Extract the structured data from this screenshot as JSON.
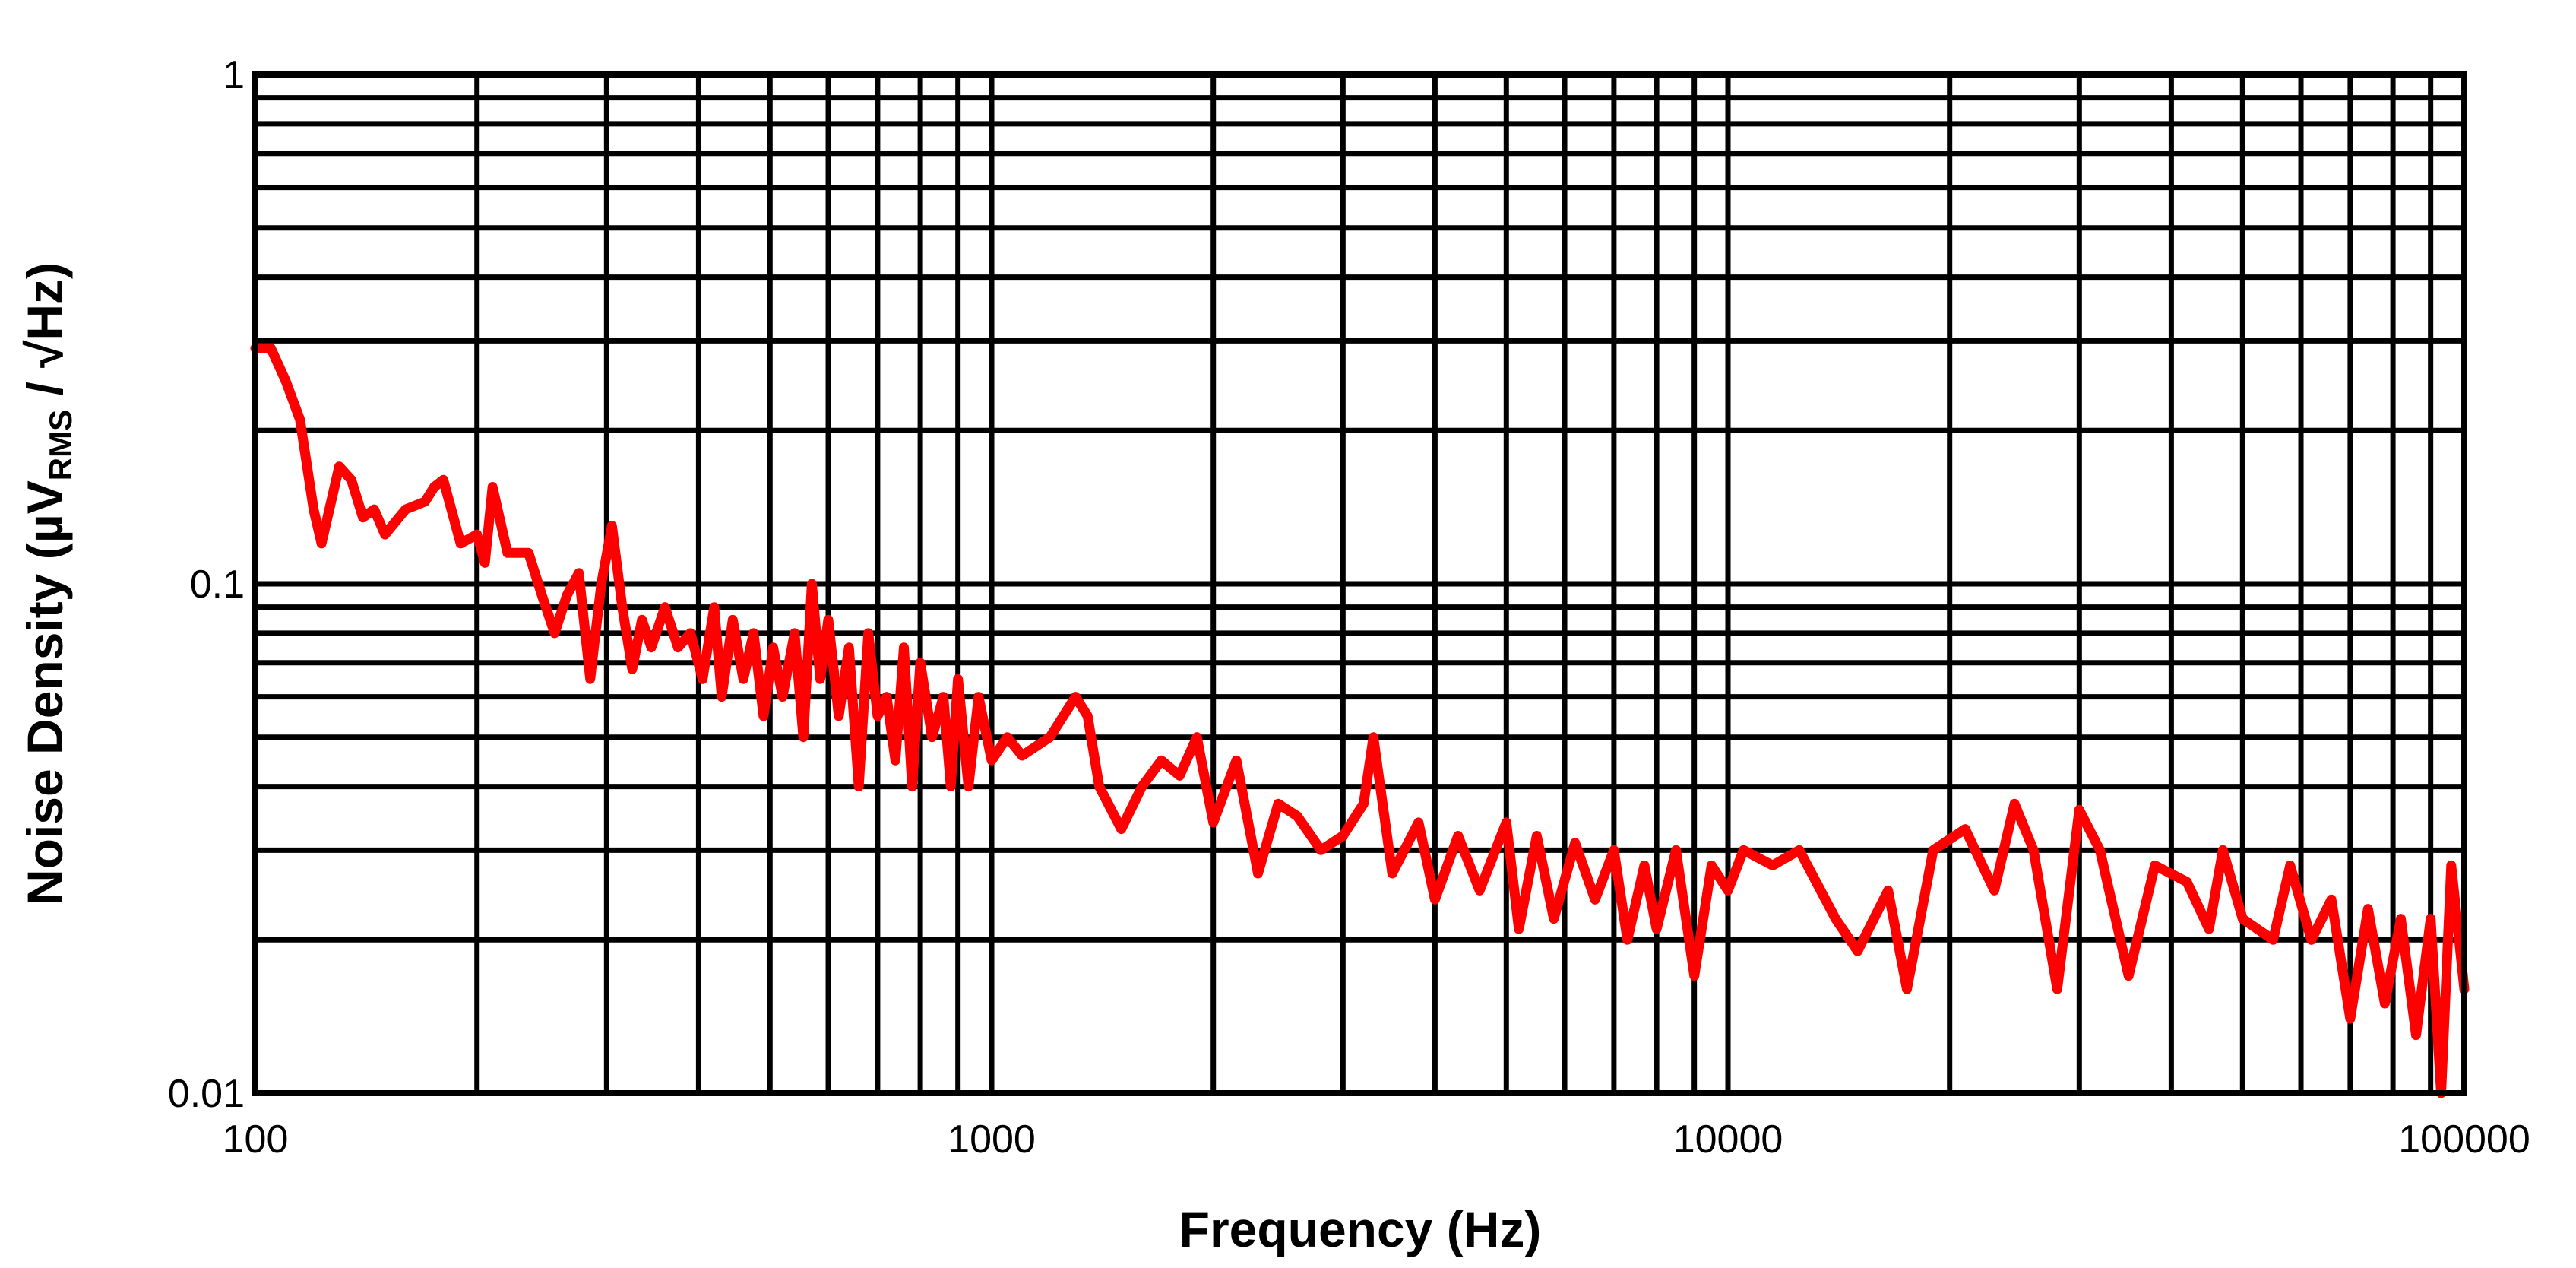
{
  "chart_data": {
    "type": "line",
    "title": "",
    "xlabel": "Frequency (Hz)",
    "ylabel": {
      "main": "Noise Density (µV",
      "sub": "RMS",
      "tail": " / √Hz)"
    },
    "xscale": "log",
    "yscale": "log",
    "xlim": [
      100,
      100000
    ],
    "ylim": [
      0.01,
      1
    ],
    "xticks": [
      {
        "value": 100,
        "label": "100"
      },
      {
        "value": 1000,
        "label": "1000"
      },
      {
        "value": 10000,
        "label": "10000"
      },
      {
        "value": 100000,
        "label": "100000"
      }
    ],
    "yticks": [
      {
        "value": 1,
        "label": "1"
      },
      {
        "value": 0.1,
        "label": "0.1"
      },
      {
        "value": 0.01,
        "label": "0.01"
      }
    ],
    "grid": true,
    "grid_color": "#000000",
    "series": [
      {
        "color": "#ff0000",
        "x": [
          100,
          105,
          110,
          115,
          120,
          123,
          130,
          135,
          140,
          145,
          150,
          160,
          170,
          175,
          180,
          190,
          200,
          205,
          210,
          220,
          235,
          245,
          255,
          265,
          275,
          285,
          295,
          305,
          315,
          325,
          335,
          345,
          360,
          375,
          390,
          405,
          420,
          430,
          445,
          460,
          475,
          490,
          505,
          520,
          540,
          555,
          570,
          585,
          600,
          620,
          640,
          660,
          680,
          700,
          720,
          740,
          760,
          780,
          800,
          830,
          860,
          880,
          900,
          930,
          960,
          1000,
          1050,
          1100,
          1200,
          1300,
          1350,
          1400,
          1500,
          1600,
          1700,
          1800,
          1900,
          2000,
          2150,
          2300,
          2450,
          2600,
          2800,
          3000,
          3200,
          3300,
          3500,
          3800,
          4000,
          4300,
          4600,
          5000,
          5200,
          5500,
          5800,
          6200,
          6600,
          7000,
          7300,
          7700,
          8000,
          8500,
          9000,
          9500,
          10000,
          10500,
          11500,
          12500,
          14000,
          15000,
          16500,
          17500,
          19000,
          21000,
          23000,
          24500,
          26000,
          28000,
          30000,
          32000,
          35000,
          38000,
          42000,
          45000,
          47000,
          50000,
          55000,
          58000,
          62000,
          66000,
          70000,
          74000,
          78000,
          82000,
          86000,
          90000,
          93000,
          96000,
          100000
        ],
        "y": [
          0.29,
          0.29,
          0.25,
          0.21,
          0.14,
          0.12,
          0.17,
          0.16,
          0.135,
          0.14,
          0.125,
          0.14,
          0.145,
          0.155,
          0.16,
          0.12,
          0.125,
          0.11,
          0.155,
          0.115,
          0.115,
          0.095,
          0.08,
          0.095,
          0.105,
          0.065,
          0.1,
          0.13,
          0.09,
          0.068,
          0.085,
          0.075,
          0.09,
          0.075,
          0.08,
          0.065,
          0.09,
          0.06,
          0.085,
          0.065,
          0.08,
          0.055,
          0.075,
          0.06,
          0.08,
          0.05,
          0.1,
          0.065,
          0.085,
          0.055,
          0.075,
          0.04,
          0.08,
          0.055,
          0.06,
          0.045,
          0.075,
          0.04,
          0.07,
          0.05,
          0.06,
          0.04,
          0.065,
          0.04,
          0.06,
          0.045,
          0.05,
          0.046,
          0.05,
          0.06,
          0.055,
          0.04,
          0.033,
          0.04,
          0.045,
          0.042,
          0.05,
          0.034,
          0.045,
          0.027,
          0.037,
          0.035,
          0.03,
          0.032,
          0.037,
          0.05,
          0.027,
          0.034,
          0.024,
          0.032,
          0.025,
          0.034,
          0.021,
          0.032,
          0.022,
          0.031,
          0.024,
          0.03,
          0.02,
          0.028,
          0.021,
          0.03,
          0.017,
          0.028,
          0.025,
          0.03,
          0.028,
          0.03,
          0.022,
          0.019,
          0.025,
          0.016,
          0.03,
          0.033,
          0.025,
          0.037,
          0.03,
          0.016,
          0.036,
          0.03,
          0.017,
          0.028,
          0.026,
          0.021,
          0.03,
          0.022,
          0.02,
          0.028,
          0.02,
          0.024,
          0.014,
          0.023,
          0.015,
          0.022,
          0.013,
          0.022,
          0.01,
          0.028,
          0.016
        ]
      }
    ]
  }
}
